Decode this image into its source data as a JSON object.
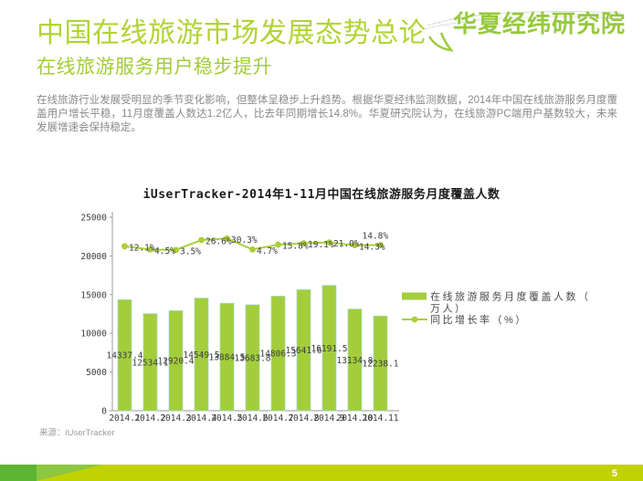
{
  "header": {
    "title": "中国在线旅游市场发展态势总论",
    "subtitle": "在线旅游服务用户稳步提升",
    "logo": "华夏经纬研究院"
  },
  "body_text": "在线旅游行业发展受明显的季节变化影响，但整体呈稳步上升趋势。根据华夏经纬监测数据，2014年中国在线旅游服务月度覆盖用户增长平稳，11月度覆盖人数达1.2亿人，比去年同期增长14.8%。华夏研究院认为，在线旅游PC端用户基数较大，未来发展增速会保持稳定。",
  "chart_data": {
    "type": "bar",
    "title": "iUserTracker-2014年1-11月中国在线旅游服务月度覆盖人数",
    "categories": [
      "2014.1",
      "2014.2",
      "2014.3",
      "2014.4",
      "2014.5",
      "2014.6",
      "2014.7",
      "2014.8",
      "2014.9",
      "2014.10",
      "2014.11"
    ],
    "series": [
      {
        "name": "在线旅游服务月度覆盖人数（万人）",
        "type": "bar",
        "values": [
          14337.4,
          12534.1,
          12920.4,
          14549.5,
          13884.5,
          13683.8,
          14806.3,
          15641.6,
          16191.5,
          13134.8,
          12238.1
        ],
        "color": "#a3cd3b"
      },
      {
        "name": "同比增长率（%）",
        "type": "line",
        "values": [
          12.1,
          4.5,
          3.5,
          26.6,
          30.3,
          4.7,
          15.8,
          19.1,
          21.0,
          14.3,
          14.8
        ],
        "color": "#aacf37"
      }
    ],
    "ylim": [
      0,
      25000
    ],
    "yticks": [
      0,
      5000,
      10000,
      15000,
      20000,
      25000
    ],
    "grid": false,
    "legend_position": "right"
  },
  "source": "来源：iUserTracker",
  "footer": {
    "page": "5"
  },
  "colors": {
    "title_green": "#b1d335",
    "subtitle_green": "#a3cc39",
    "logo_green": "#96c93d",
    "bar_green": "#a3cd3b",
    "line_green": "#aacf37",
    "footer_bar": "#c0d200",
    "footer_dark_green": "#5cb533",
    "footer_mid_green": "#8ec63f",
    "body_gray": "#8a8a8a"
  }
}
